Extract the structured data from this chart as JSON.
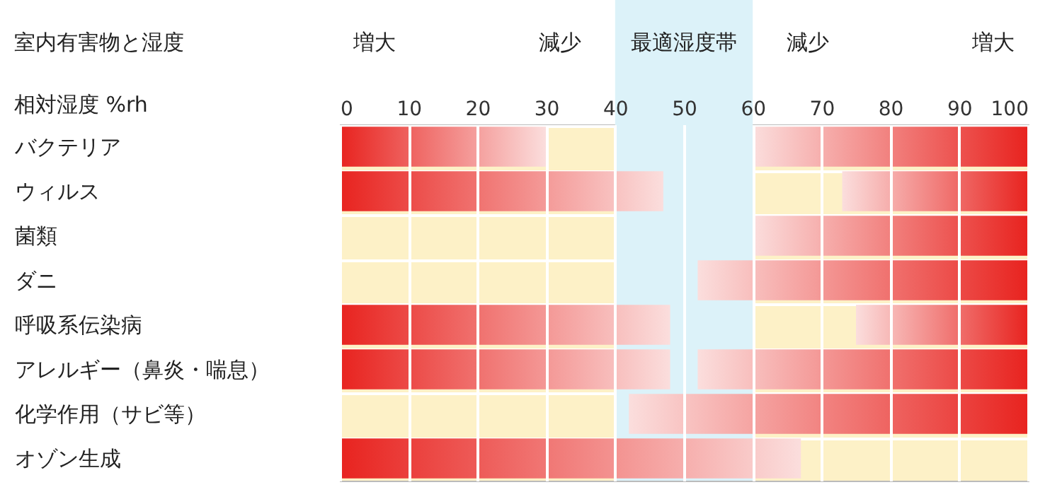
{
  "chart_data": {
    "type": "bar",
    "orientation": "horizontal",
    "title": "室内有害物と湿度",
    "xlabel": "相対湿度 %rh",
    "categories": [
      "バクテリア",
      "ウィルス",
      "菌類",
      "ダニ",
      "呼吸系伝染病",
      "アレルギー（鼻炎・喘息）",
      "化学作用（サビ等）",
      "オゾン生成"
    ],
    "series": [
      {
        "color": "#e8231f",
        "values": [
          30,
          47,
          null,
          null,
          48,
          48,
          null,
          67
        ],
        "base": [
          0,
          0,
          null,
          null,
          0,
          0,
          null,
          0
        ]
      },
      {
        "color": "#e8231f",
        "values": [
          40,
          27,
          40,
          48,
          25,
          48,
          58,
          null
        ],
        "base": [
          60,
          73,
          60,
          52,
          75,
          52,
          42,
          null
        ]
      }
    ],
    "xlim": [
      0,
      100
    ],
    "xticks": [
      0,
      10,
      20,
      30,
      40,
      50,
      60,
      70,
      80,
      90,
      100
    ],
    "bands": [
      {
        "axis": "x",
        "from": 40,
        "to": 60,
        "label": "最適湿度帯",
        "color": "#dcf2f9"
      }
    ],
    "annotations": [
      "増大",
      "減少",
      "減少",
      "増大"
    ],
    "grid": true
  }
}
